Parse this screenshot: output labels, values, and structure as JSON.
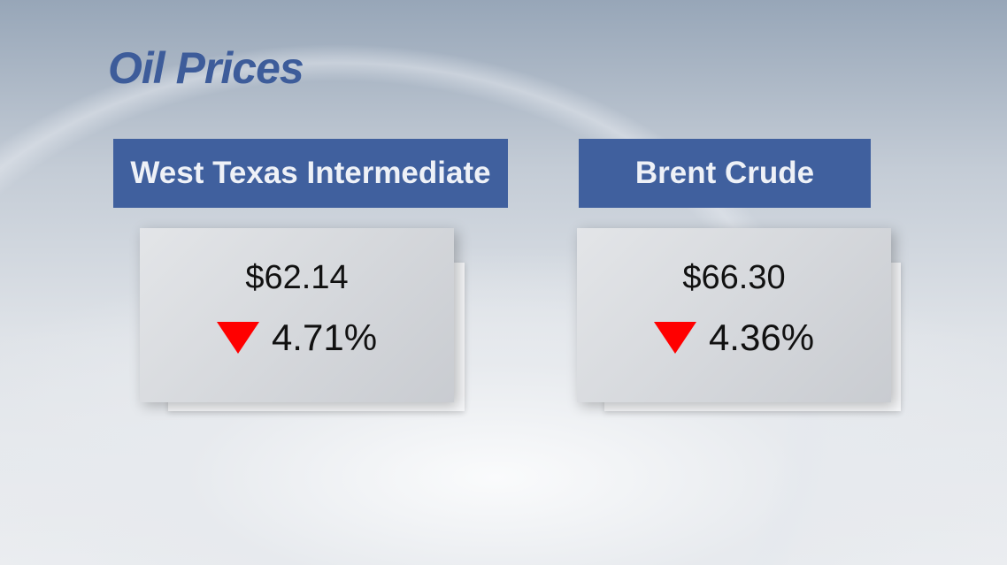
{
  "title": "Oil Prices",
  "markets": [
    {
      "name": "West Texas Intermediate",
      "price": "$62.14",
      "change": "4.71%",
      "direction": "down"
    },
    {
      "name": "Brent Crude",
      "price": "$66.30",
      "change": "4.36%",
      "direction": "down"
    }
  ],
  "colors": {
    "header": "#40609e",
    "title": "#3d5c9a",
    "down_arrow": "#ff0000"
  }
}
